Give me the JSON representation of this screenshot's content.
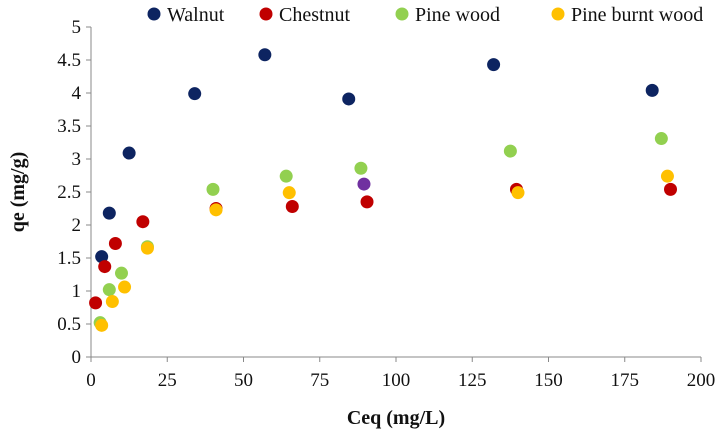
{
  "chart_data": {
    "type": "scatter",
    "xlabel": "Ceq (mg/L)",
    "ylabel": "qe (mg/g)",
    "xlim": [
      0,
      200
    ],
    "ylim": [
      0,
      5
    ],
    "xticks": [
      0,
      25,
      50,
      75,
      100,
      125,
      150,
      175,
      200
    ],
    "yticks": [
      "0",
      "0.5",
      "1",
      "1.5",
      "2",
      "2.5",
      "3",
      "3.5",
      "4",
      "4.5",
      "5"
    ],
    "legend_position": "top",
    "series": [
      {
        "name": "Walnut",
        "color": "#0d2461",
        "points": [
          [
            3.5,
            1.52
          ],
          [
            6,
            2.18
          ],
          [
            12.5,
            3.09
          ],
          [
            34,
            3.99
          ],
          [
            57,
            4.58
          ],
          [
            84.5,
            3.91
          ],
          [
            132,
            4.43
          ],
          [
            184,
            4.04
          ]
        ]
      },
      {
        "name": "Chestnut",
        "color": "#c00000",
        "points": [
          [
            1.5,
            0.82
          ],
          [
            4.5,
            1.37
          ],
          [
            8,
            1.72
          ],
          [
            17,
            2.05
          ],
          [
            41,
            2.25
          ],
          [
            66,
            2.28
          ],
          [
            90.5,
            2.35
          ],
          [
            139.5,
            2.54
          ],
          [
            190,
            2.54
          ]
        ]
      },
      {
        "name": "Pine wood",
        "color": "#92d050",
        "points": [
          [
            3,
            0.52
          ],
          [
            6,
            1.02
          ],
          [
            10,
            1.27
          ],
          [
            18.5,
            1.67
          ],
          [
            40,
            2.54
          ],
          [
            64,
            2.74
          ],
          [
            88.5,
            2.86
          ],
          [
            137.5,
            3.12
          ],
          [
            187,
            3.31
          ]
        ]
      },
      {
        "name": "Pine burnt wood",
        "color": "#ffc000",
        "points": [
          [
            3.5,
            0.48
          ],
          [
            7,
            0.84
          ],
          [
            11,
            1.06
          ],
          [
            18.5,
            1.65
          ],
          [
            41,
            2.23
          ],
          [
            65,
            2.49
          ],
          [
            140,
            2.49
          ],
          [
            189,
            2.74
          ]
        ]
      }
    ],
    "extra_points": [
      {
        "x": 89.5,
        "y": 2.62,
        "color": "#7030a0"
      }
    ]
  }
}
